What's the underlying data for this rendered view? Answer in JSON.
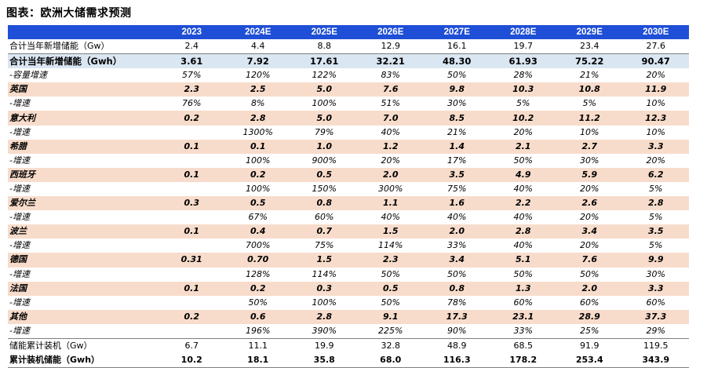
{
  "title": "图表：欧洲大储需求预测",
  "columns": [
    "",
    "2023",
    "2024E",
    "2025E",
    "2026E",
    "2027E",
    "2028E",
    "2029E",
    "2030E"
  ],
  "rows": [
    {
      "style": "normal line",
      "label": "合计当年新增储能（Gw）",
      "values": [
        "2.4",
        "4.4",
        "8.8",
        "12.9",
        "16.1",
        "19.7",
        "23.4",
        "27.6"
      ]
    },
    {
      "style": "total",
      "label": "合计当年新增储能（Gwh）",
      "values": [
        "3.61",
        "7.92",
        "17.61",
        "32.21",
        "48.30",
        "61.93",
        "75.22",
        "90.47"
      ]
    },
    {
      "style": "growth",
      "label": "-容量增速",
      "values": [
        "57%",
        "120%",
        "122%",
        "83%",
        "50%",
        "28%",
        "21%",
        "20%"
      ]
    },
    {
      "style": "country",
      "label": "英国",
      "values": [
        "2.3",
        "2.5",
        "5.0",
        "7.6",
        "9.8",
        "10.3",
        "10.8",
        "11.9"
      ]
    },
    {
      "style": "growth",
      "label": "-增速",
      "values": [
        "76%",
        "8%",
        "100%",
        "51%",
        "30%",
        "5%",
        "5%",
        "10%"
      ]
    },
    {
      "style": "country",
      "label": "意大利",
      "values": [
        "0.2",
        "2.8",
        "5.0",
        "7.0",
        "8.5",
        "10.2",
        "11.2",
        "12.3"
      ]
    },
    {
      "style": "growth",
      "label": "-增速",
      "values": [
        "",
        "1300%",
        "79%",
        "40%",
        "21%",
        "20%",
        "10%",
        "10%"
      ]
    },
    {
      "style": "country",
      "label": "希腊",
      "values": [
        "0.1",
        "0.1",
        "1.0",
        "1.2",
        "1.4",
        "2.1",
        "2.7",
        "3.3"
      ]
    },
    {
      "style": "growth",
      "label": "-增速",
      "values": [
        "",
        "100%",
        "900%",
        "20%",
        "17%",
        "50%",
        "30%",
        "20%"
      ]
    },
    {
      "style": "country",
      "label": "西班牙",
      "values": [
        "0.1",
        "0.2",
        "0.5",
        "2.0",
        "3.5",
        "4.9",
        "5.9",
        "6.2"
      ]
    },
    {
      "style": "growth",
      "label": "-增速",
      "values": [
        "",
        "100%",
        "150%",
        "300%",
        "75%",
        "40%",
        "20%",
        "5%"
      ]
    },
    {
      "style": "country",
      "label": "爱尔兰",
      "values": [
        "0.3",
        "0.5",
        "0.8",
        "1.1",
        "1.6",
        "2.2",
        "2.6",
        "2.8"
      ]
    },
    {
      "style": "growth",
      "label": "-增速",
      "values": [
        "",
        "67%",
        "60%",
        "40%",
        "40%",
        "40%",
        "20%",
        "5%"
      ]
    },
    {
      "style": "country",
      "label": "波兰",
      "values": [
        "0.1",
        "0.4",
        "0.7",
        "1.5",
        "2.0",
        "2.8",
        "3.4",
        "3.5"
      ]
    },
    {
      "style": "growth",
      "label": "-增速",
      "values": [
        "",
        "700%",
        "75%",
        "114%",
        "33%",
        "40%",
        "20%",
        "5%"
      ]
    },
    {
      "style": "country",
      "label": "德国",
      "values": [
        "0.31",
        "0.70",
        "1.5",
        "2.3",
        "3.4",
        "5.1",
        "7.6",
        "9.9"
      ]
    },
    {
      "style": "growth",
      "label": "-增速",
      "values": [
        "",
        "128%",
        "114%",
        "50%",
        "50%",
        "50%",
        "50%",
        "30%"
      ]
    },
    {
      "style": "country",
      "label": "法国",
      "values": [
        "0.1",
        "0.2",
        "0.3",
        "0.5",
        "0.8",
        "1.3",
        "2.0",
        "3.3"
      ]
    },
    {
      "style": "growth",
      "label": "-增速",
      "values": [
        "",
        "50%",
        "100%",
        "50%",
        "78%",
        "60%",
        "60%",
        "60%"
      ]
    },
    {
      "style": "country",
      "label": "其他",
      "values": [
        "0.2",
        "0.6",
        "2.8",
        "9.1",
        "17.3",
        "23.1",
        "28.9",
        "37.3"
      ]
    },
    {
      "style": "growth line",
      "label": "-增速",
      "values": [
        "",
        "196%",
        "390%",
        "225%",
        "90%",
        "33%",
        "25%",
        "29%"
      ]
    },
    {
      "style": "normal",
      "label": "储能累计装机（Gw）",
      "values": [
        "6.7",
        "11.1",
        "19.9",
        "32.8",
        "48.9",
        "68.5",
        "91.9",
        "119.5"
      ]
    },
    {
      "style": "bold lastline",
      "label": "累计装机储能（Gwh）",
      "values": [
        "10.2",
        "18.1",
        "35.8",
        "68.0",
        "116.3",
        "178.2",
        "253.4",
        "343.9"
      ]
    }
  ]
}
